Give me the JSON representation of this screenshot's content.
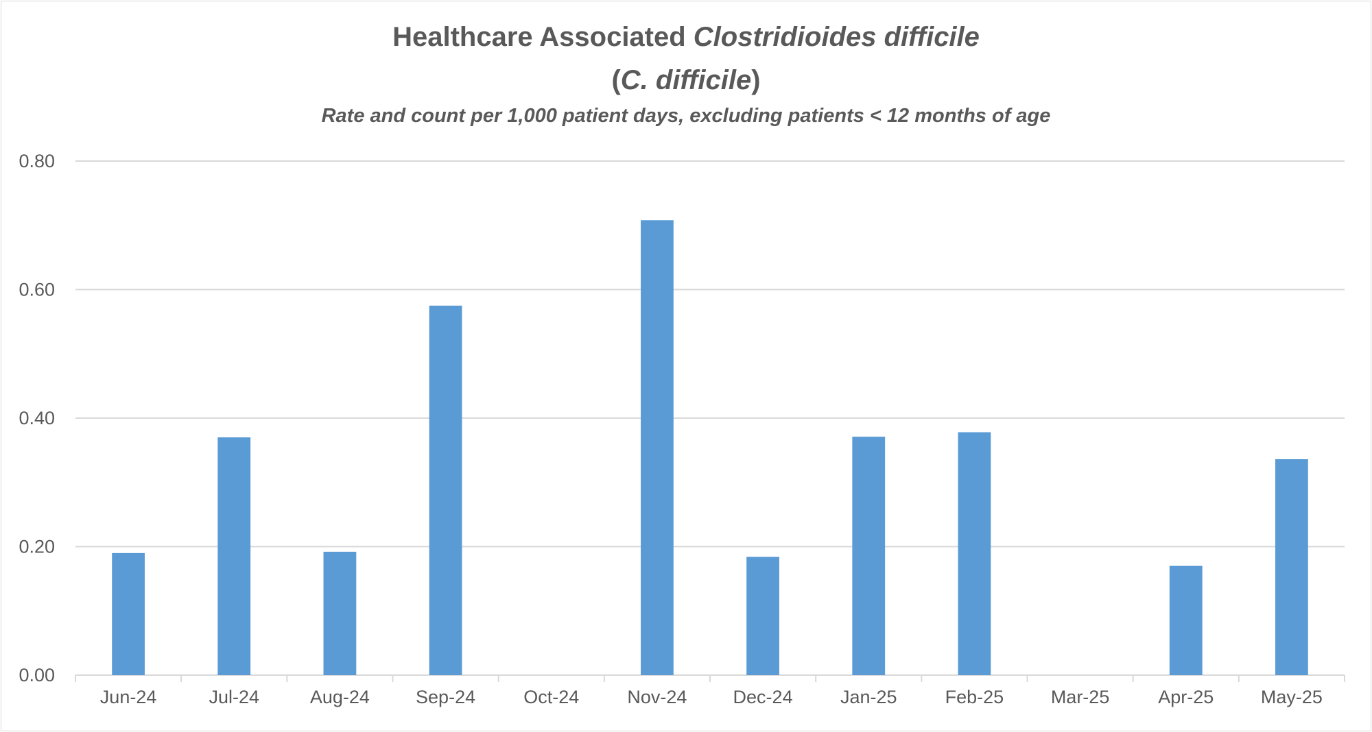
{
  "chart_data": {
    "type": "bar",
    "title_line1_plain": "Healthcare Associated ",
    "title_line1_italic": "Clostridioides difficile",
    "title_line2_open": "(",
    "title_line2_italic": "C. difficile",
    "title_line2_close": ")",
    "subtitle": "Rate and count per 1,000 patient days, excluding patients < 12 months of age",
    "categories": [
      "Jun-24",
      "Jul-24",
      "Aug-24",
      "Sep-24",
      "Oct-24",
      "Nov-24",
      "Dec-24",
      "Jan-25",
      "Feb-25",
      "Mar-25",
      "Apr-25",
      "May-25"
    ],
    "values": [
      0.19,
      0.37,
      0.192,
      0.575,
      0,
      0.708,
      0.184,
      0.371,
      0.378,
      0,
      0.17,
      0.336
    ],
    "ylim": [
      0,
      0.8
    ],
    "yticks": [
      "0.00",
      "0.20",
      "0.40",
      "0.60",
      "0.80"
    ],
    "grid": true,
    "bar_color": "#5b9bd5"
  }
}
